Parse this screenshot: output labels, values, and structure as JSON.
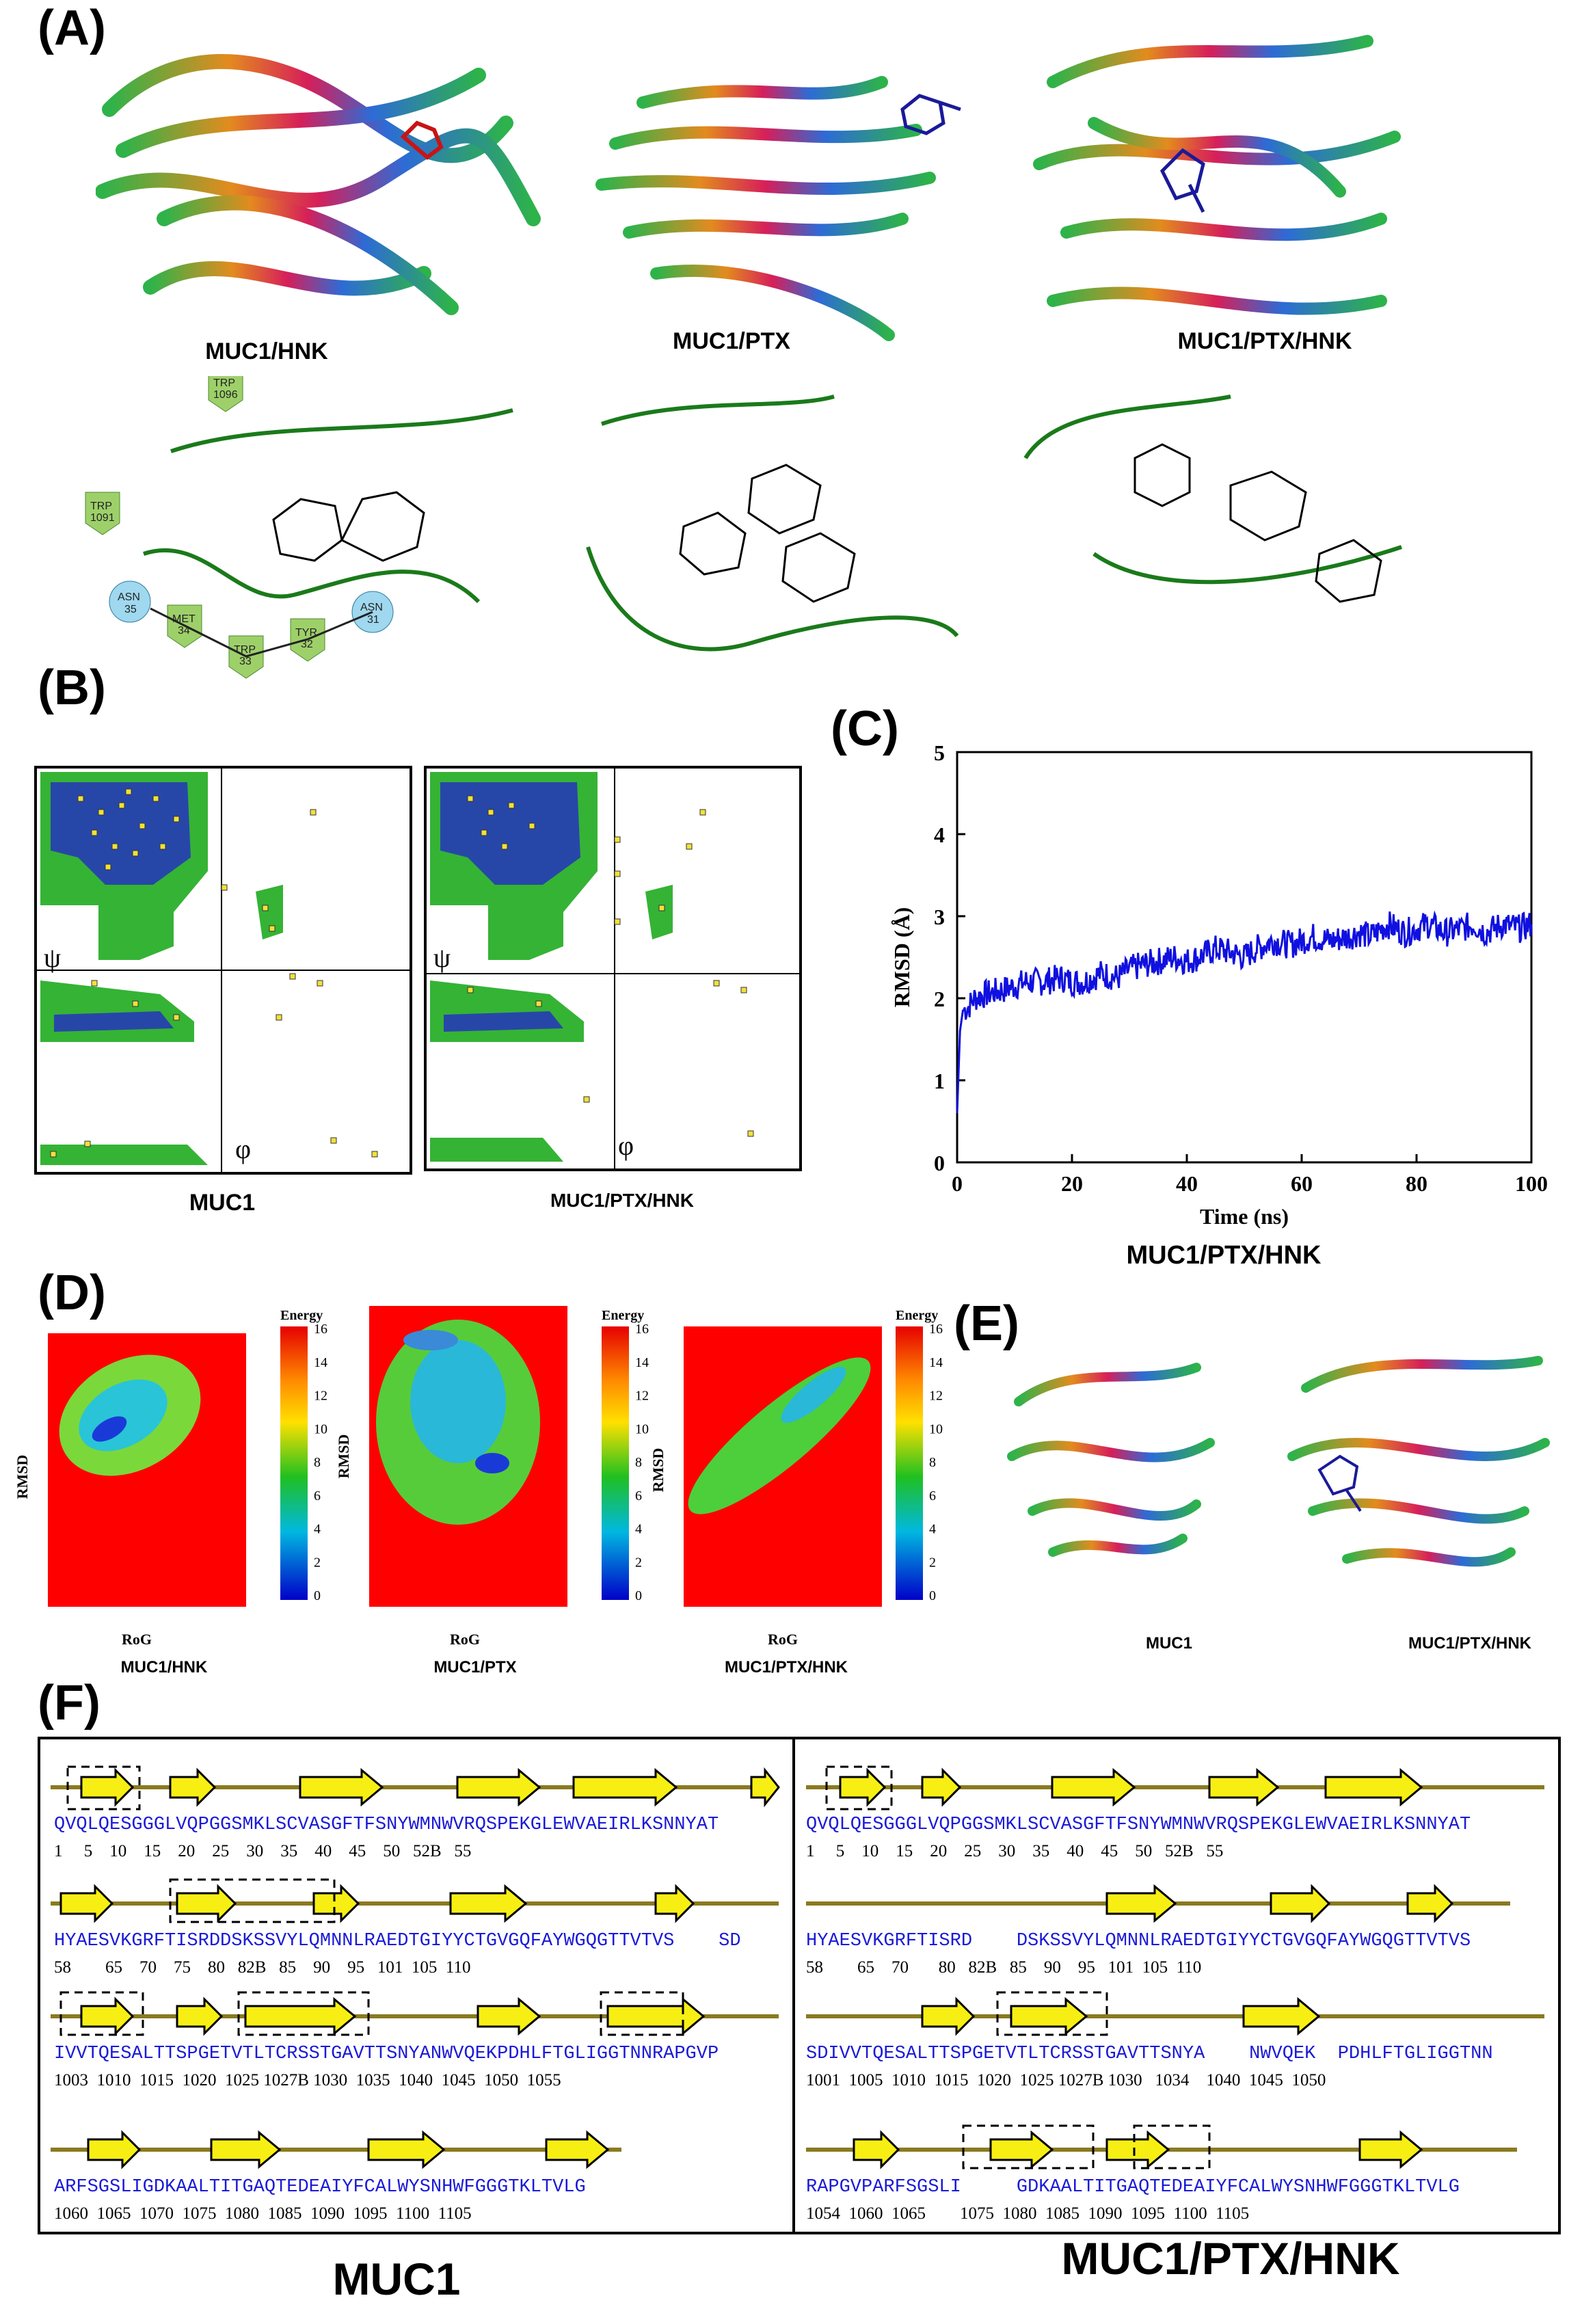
{
  "panels": {
    "A": {
      "letter": "(A)",
      "captions": [
        "MUC1/HNK",
        "MUC1/PTX",
        "MUC1/PTX/HNK"
      ],
      "residues_hnk": [
        "TRP 1096",
        "TRP 1091",
        "ASN 35",
        "MET 34",
        "TRP 33",
        "TYR 32",
        "ASN 31"
      ]
    },
    "B": {
      "letter": "(B)",
      "captions": [
        "MUC1",
        "MUC1/PTX/HNK"
      ],
      "psi": "ψ",
      "phi": "φ"
    },
    "C": {
      "letter": "(C)",
      "caption": "MUC1/PTX/HNK"
    },
    "D": {
      "letter": "(D)",
      "captions": [
        "MUC1/HNK",
        "MUC1/PTX",
        "MUC1/PTX/HNK"
      ],
      "xlabel": "RoG",
      "ylabel": "RMSD",
      "energy_label": "Energy",
      "colorbar_ticks": [
        "16",
        "14",
        "12",
        "10",
        "8",
        "6",
        "4",
        "2",
        "0"
      ]
    },
    "E": {
      "letter": "(E)",
      "captions": [
        "MUC1",
        "MUC1/PTX/HNK"
      ]
    },
    "F": {
      "letter": "(F)",
      "captions": [
        "MUC1",
        "MUC1/PTX/HNK"
      ],
      "left": [
        {
          "seq": "QVQLQESGGGLVQPGGSMKLSCVASGFTFSNYWMNWVRQSPEKGLEWVAEIRLKSNNYAT",
          "nums": "1     5    10    15    20    25    30    35    40    45    50   52B   55"
        },
        {
          "seq": "HYAESVKGRFTISRDDSKSSVYLQMNNLRAEDTGIYYCTGVGQFAYWGQGTTVTVS    SD",
          "nums": "58        65    70    75    80   82B   85    90    95   101  105  110"
        },
        {
          "seq": "IVVTQESALTTSPGETVTLTCRSSTGAVTTSNYANWVQEKPDHLFTGLIGGTNNRAPGVP",
          "nums": "1003  1010  1015  1020  1025 1027B 1030  1035  1040  1045  1050  1055"
        },
        {
          "seq": "ARFSGSLIGDKAALTITGAQTEDEAIYFCALWYSNHWFGGGTKLTVLG",
          "nums": "1060  1065  1070  1075  1080  1085  1090  1095  1100  1105"
        }
      ],
      "right": [
        {
          "seq": "QVQLQESGGGLVQPGGSMKLSCVASGFTFSNYWMNWVRQSPEKGLEWVAEIRLKSNNYAT",
          "nums": "1     5    10    15    20    25    30    35    40    45    50   52B   55"
        },
        {
          "seq": "HYAESVKGRFTISRD    DSKSSVYLQMNNLRAEDTGIYYCTGVGQFAYWGQGTTVTVS",
          "nums": "58        65    70       80   82B   85    90    95   101  105  110"
        },
        {
          "seq": "SDIVVTQESALTTSPGETVTLTCRSSTGAVTTSNYA    NWVQEK  PDHLFTGLIGGTNN",
          "nums": "1001  1005  1010  1015  1020  1025 1027B 1030   1034    1040  1045  1050"
        },
        {
          "seq": "RAPGVPARFSGSLI     GDKAALTITGAQTEDEAIYFCALWYSNHWFGGGTKLTVLG",
          "nums": "1054  1060  1065        1075  1080  1085  1090  1095  1100  1105"
        }
      ]
    }
  },
  "chart_data": {
    "type": "line",
    "title": "",
    "xlabel": "Time (ns)",
    "ylabel": "RMSD (Å)",
    "xlim": [
      0,
      100
    ],
    "ylim": [
      0,
      5
    ],
    "xticks": [
      0,
      20,
      40,
      60,
      80,
      100
    ],
    "yticks": [
      0,
      1,
      2,
      3,
      4,
      5
    ],
    "x": [
      0,
      0.5,
      1,
      2,
      3,
      5,
      8,
      10,
      12,
      15,
      18,
      20,
      22,
      25,
      28,
      30,
      32,
      35,
      38,
      40,
      42,
      45,
      48,
      50,
      52,
      55,
      58,
      60,
      62,
      65,
      68,
      70,
      72,
      75,
      78,
      80,
      82,
      85,
      88,
      90,
      92,
      95,
      98,
      100
    ],
    "y": [
      0.6,
      1.6,
      1.85,
      1.9,
      2.0,
      2.05,
      2.1,
      2.15,
      2.2,
      2.2,
      2.25,
      2.2,
      2.2,
      2.3,
      2.25,
      2.35,
      2.4,
      2.45,
      2.5,
      2.45,
      2.5,
      2.6,
      2.55,
      2.5,
      2.6,
      2.7,
      2.65,
      2.7,
      2.75,
      2.7,
      2.75,
      2.8,
      2.75,
      2.9,
      2.8,
      2.85,
      2.9,
      2.8,
      2.85,
      2.9,
      2.8,
      2.9,
      2.85,
      2.9
    ],
    "color": "#1010e0"
  }
}
